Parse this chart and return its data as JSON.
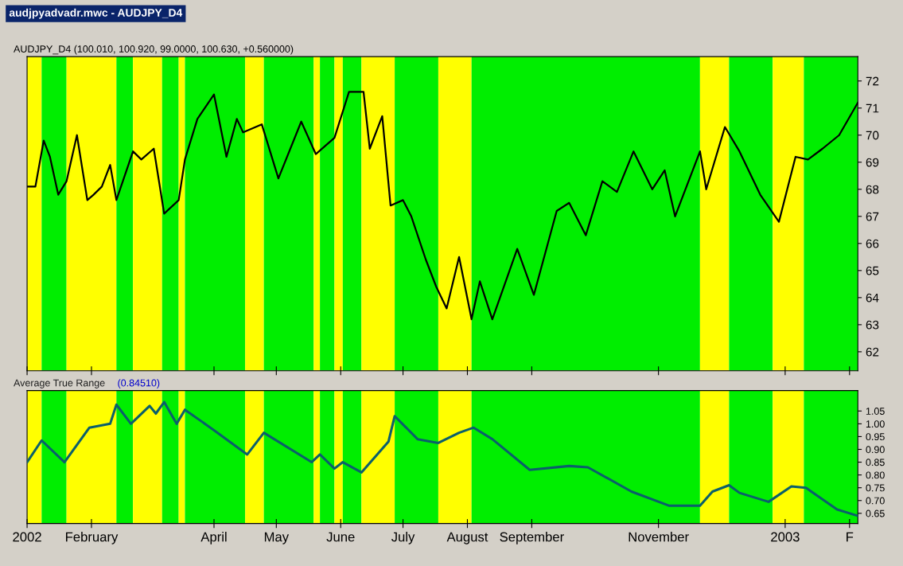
{
  "chart_data": [
    {
      "type": "line",
      "title": "audjpyadvadr.mwc - AUDJPY_D4",
      "subtitle": "AUDJPY_D4 (100.010, 100.920, 99.0000, 100.630, +0.560000)",
      "series": [
        {
          "color": "#000000",
          "x": [
            "2002-01-01",
            "2002-01-05",
            "2002-01-09",
            "2002-01-12",
            "2002-01-16",
            "2002-01-20",
            "2002-01-25",
            "2002-01-30",
            "2002-02-02",
            "2002-02-06",
            "2002-02-10",
            "2002-02-13",
            "2002-02-21",
            "2002-02-25",
            "2002-03-03",
            "2002-03-08",
            "2002-03-15",
            "2002-03-18",
            "2002-03-24",
            "2002-04-01",
            "2002-04-07",
            "2002-04-12",
            "2002-04-15",
            "2002-04-24",
            "2002-05-02",
            "2002-05-13",
            "2002-05-20",
            "2002-05-29",
            "2002-06-05",
            "2002-06-12",
            "2002-06-15",
            "2002-06-21",
            "2002-06-25",
            "2002-07-01",
            "2002-07-05",
            "2002-07-12",
            "2002-07-17",
            "2002-07-22",
            "2002-07-28",
            "2002-08-03",
            "2002-08-07",
            "2002-08-13",
            "2002-08-25",
            "2002-09-02",
            "2002-09-13",
            "2002-09-19",
            "2002-09-27",
            "2002-10-05",
            "2002-10-12",
            "2002-10-20",
            "2002-10-29",
            "2002-11-04",
            "2002-11-09",
            "2002-11-21",
            "2002-11-24",
            "2002-12-03",
            "2002-12-10",
            "2002-12-20",
            "2002-12-29",
            "2003-01-06",
            "2003-01-12",
            "2003-01-19",
            "2003-01-27",
            "2003-02-05"
          ],
          "values": [
            68.1,
            68.1,
            69.8,
            69.2,
            67.8,
            68.3,
            70.0,
            67.6,
            67.8,
            68.1,
            68.9,
            67.6,
            69.4,
            69.1,
            69.5,
            67.1,
            67.6,
            69.1,
            70.6,
            71.5,
            69.2,
            70.6,
            70.1,
            70.4,
            68.4,
            70.5,
            69.3,
            69.9,
            71.6,
            71.6,
            69.5,
            70.7,
            67.4,
            67.6,
            67.0,
            65.4,
            64.4,
            63.6,
            65.5,
            63.2,
            64.6,
            63.2,
            65.8,
            64.1,
            67.2,
            67.5,
            66.3,
            68.3,
            67.9,
            69.4,
            68.0,
            68.7,
            67.0,
            69.4,
            68.0,
            70.3,
            69.4,
            67.8,
            66.8,
            69.2,
            69.1,
            69.5,
            70.0,
            71.2
          ]
        }
      ],
      "xlim": [
        "2002-01-01",
        "2003-02-05"
      ],
      "ylim": [
        61.3,
        72.9
      ],
      "yticks": [
        62,
        63,
        64,
        65,
        66,
        67,
        68,
        69,
        70,
        71,
        72
      ],
      "xticks": [
        {
          "value": "2002-01-01",
          "label": null
        },
        {
          "value": "2002-02-01",
          "label": null
        },
        {
          "value": "2002-04-01",
          "label": null
        },
        {
          "value": "2002-05-01",
          "label": null
        },
        {
          "value": "2002-06-01",
          "label": null
        },
        {
          "value": "2002-07-01",
          "label": null
        },
        {
          "value": "2002-08-01",
          "label": null
        },
        {
          "value": "2002-09-01",
          "label": null
        },
        {
          "value": "2002-11-01",
          "label": null
        },
        {
          "value": "2003-01-01",
          "label": null
        },
        {
          "value": "2003-02-01",
          "label": null
        }
      ],
      "tick_labels": "y",
      "grid": false,
      "bands": [
        {
          "axis": "x",
          "from": "2002-01-01",
          "to": "2002-01-08",
          "color": "#ffff00"
        },
        {
          "axis": "x",
          "from": "2002-01-08",
          "to": "2002-01-20",
          "color": "#00ee00"
        },
        {
          "axis": "x",
          "from": "2002-01-20",
          "to": "2002-02-13",
          "color": "#ffff00"
        },
        {
          "axis": "x",
          "from": "2002-02-13",
          "to": "2002-02-21",
          "color": "#00ee00"
        },
        {
          "axis": "x",
          "from": "2002-02-21",
          "to": "2002-03-07",
          "color": "#ffff00"
        },
        {
          "axis": "x",
          "from": "2002-03-07",
          "to": "2002-03-15",
          "color": "#00ee00"
        },
        {
          "axis": "x",
          "from": "2002-03-15",
          "to": "2002-03-18",
          "color": "#ffff00"
        },
        {
          "axis": "x",
          "from": "2002-03-18",
          "to": "2002-04-16",
          "color": "#00ee00"
        },
        {
          "axis": "x",
          "from": "2002-04-16",
          "to": "2002-04-25",
          "color": "#ffff00"
        },
        {
          "axis": "x",
          "from": "2002-04-25",
          "to": "2002-05-19",
          "color": "#00ee00"
        },
        {
          "axis": "x",
          "from": "2002-05-19",
          "to": "2002-05-22",
          "color": "#ffff00"
        },
        {
          "axis": "x",
          "from": "2002-05-22",
          "to": "2002-05-29",
          "color": "#00ee00"
        },
        {
          "axis": "x",
          "from": "2002-05-29",
          "to": "2002-06-02",
          "color": "#ffff00"
        },
        {
          "axis": "x",
          "from": "2002-06-02",
          "to": "2002-06-11",
          "color": "#00ee00"
        },
        {
          "axis": "x",
          "from": "2002-06-11",
          "to": "2002-06-27",
          "color": "#ffff00"
        },
        {
          "axis": "x",
          "from": "2002-06-27",
          "to": "2002-07-18",
          "color": "#00ee00"
        },
        {
          "axis": "x",
          "from": "2002-07-18",
          "to": "2002-08-03",
          "color": "#ffff00"
        },
        {
          "axis": "x",
          "from": "2002-08-03",
          "to": "2002-11-21",
          "color": "#00ee00"
        },
        {
          "axis": "x",
          "from": "2002-11-21",
          "to": "2002-12-05",
          "color": "#ffff00"
        },
        {
          "axis": "x",
          "from": "2002-12-05",
          "to": "2002-12-26",
          "color": "#00ee00"
        },
        {
          "axis": "x",
          "from": "2002-12-26",
          "to": "2003-01-10",
          "color": "#ffff00"
        },
        {
          "axis": "x",
          "from": "2003-01-10",
          "to": "2003-02-05",
          "color": "#00ee00"
        }
      ]
    },
    {
      "type": "line",
      "title": "Average True Range",
      "subtitle": "(0.84510)",
      "series": [
        {
          "color": "#0b5f6b",
          "x": [
            "2002-01-01",
            "2002-01-08",
            "2002-01-19",
            "2002-01-31",
            "2002-02-10",
            "2002-02-13",
            "2002-02-20",
            "2002-03-01",
            "2002-03-04",
            "2002-03-08",
            "2002-03-14",
            "2002-03-18",
            "2002-04-01",
            "2002-04-17",
            "2002-04-25",
            "2002-05-18",
            "2002-05-22",
            "2002-05-29",
            "2002-06-02",
            "2002-06-11",
            "2002-06-24",
            "2002-06-27",
            "2002-07-08",
            "2002-07-18",
            "2002-07-28",
            "2002-08-04",
            "2002-08-13",
            "2002-08-31",
            "2002-09-19",
            "2002-09-28",
            "2002-10-19",
            "2002-11-06",
            "2002-11-21",
            "2002-11-27",
            "2002-12-05",
            "2002-12-10",
            "2002-12-24",
            "2003-01-04",
            "2003-01-11",
            "2003-01-26",
            "2003-02-05"
          ],
          "values": [
            0.85,
            0.935,
            0.85,
            0.985,
            1.0,
            1.075,
            1.0,
            1.07,
            1.04,
            1.085,
            1.0,
            1.055,
            0.975,
            0.88,
            0.965,
            0.85,
            0.88,
            0.825,
            0.85,
            0.81,
            0.93,
            1.03,
            0.94,
            0.925,
            0.965,
            0.985,
            0.94,
            0.82,
            0.835,
            0.83,
            0.735,
            0.68,
            0.68,
            0.735,
            0.76,
            0.73,
            0.695,
            0.755,
            0.75,
            0.665,
            0.64
          ]
        }
      ],
      "xlim": [
        "2002-01-01",
        "2003-02-05"
      ],
      "ylim": [
        0.61,
        1.13
      ],
      "yticks": [
        0.65,
        {
          "value": 0.7,
          "label": "0.70"
        },
        0.75,
        {
          "value": 0.8,
          "label": "0.80"
        },
        0.85,
        {
          "value": 0.9,
          "label": "0.90"
        },
        0.95,
        {
          "value": 1.0,
          "label": "1.00"
        },
        1.05
      ],
      "xticks": [
        {
          "value": "2002-01-01",
          "label": "2002"
        },
        {
          "value": "2002-02-01",
          "label": "February"
        },
        {
          "value": "2002-04-01",
          "label": "April"
        },
        {
          "value": "2002-05-01",
          "label": "May"
        },
        {
          "value": "2002-06-01",
          "label": "June"
        },
        {
          "value": "2002-07-01",
          "label": "July"
        },
        {
          "value": "2002-08-01",
          "label": "August"
        },
        {
          "value": "2002-09-01",
          "label": "September"
        },
        {
          "value": "2002-11-01",
          "label": "November"
        },
        {
          "value": "2003-01-01",
          "label": "2003"
        },
        {
          "value": "2003-02-01",
          "label": "F"
        }
      ],
      "grid": false,
      "bands": [
        {
          "axis": "x",
          "from": "2002-01-01",
          "to": "2002-01-08",
          "color": "#ffff00"
        },
        {
          "axis": "x",
          "from": "2002-01-08",
          "to": "2002-01-20",
          "color": "#00ee00"
        },
        {
          "axis": "x",
          "from": "2002-01-20",
          "to": "2002-02-13",
          "color": "#ffff00"
        },
        {
          "axis": "x",
          "from": "2002-02-13",
          "to": "2002-02-21",
          "color": "#00ee00"
        },
        {
          "axis": "x",
          "from": "2002-02-21",
          "to": "2002-03-07",
          "color": "#ffff00"
        },
        {
          "axis": "x",
          "from": "2002-03-07",
          "to": "2002-03-15",
          "color": "#00ee00"
        },
        {
          "axis": "x",
          "from": "2002-03-15",
          "to": "2002-03-18",
          "color": "#ffff00"
        },
        {
          "axis": "x",
          "from": "2002-03-18",
          "to": "2002-04-16",
          "color": "#00ee00"
        },
        {
          "axis": "x",
          "from": "2002-04-16",
          "to": "2002-04-25",
          "color": "#ffff00"
        },
        {
          "axis": "x",
          "from": "2002-04-25",
          "to": "2002-05-19",
          "color": "#00ee00"
        },
        {
          "axis": "x",
          "from": "2002-05-19",
          "to": "2002-05-22",
          "color": "#ffff00"
        },
        {
          "axis": "x",
          "from": "2002-05-22",
          "to": "2002-05-29",
          "color": "#00ee00"
        },
        {
          "axis": "x",
          "from": "2002-05-29",
          "to": "2002-06-02",
          "color": "#ffff00"
        },
        {
          "axis": "x",
          "from": "2002-06-02",
          "to": "2002-06-11",
          "color": "#00ee00"
        },
        {
          "axis": "x",
          "from": "2002-06-11",
          "to": "2002-06-27",
          "color": "#ffff00"
        },
        {
          "axis": "x",
          "from": "2002-06-27",
          "to": "2002-07-18",
          "color": "#00ee00"
        },
        {
          "axis": "x",
          "from": "2002-07-18",
          "to": "2002-08-03",
          "color": "#ffff00"
        },
        {
          "axis": "x",
          "from": "2002-08-03",
          "to": "2002-11-21",
          "color": "#00ee00"
        },
        {
          "axis": "x",
          "from": "2002-11-21",
          "to": "2002-12-05",
          "color": "#ffff00"
        },
        {
          "axis": "x",
          "from": "2002-12-05",
          "to": "2002-12-26",
          "color": "#00ee00"
        },
        {
          "axis": "x",
          "from": "2002-12-26",
          "to": "2003-01-10",
          "color": "#ffff00"
        },
        {
          "axis": "x",
          "from": "2003-01-10",
          "to": "2003-02-05",
          "color": "#00ee00"
        }
      ]
    }
  ]
}
